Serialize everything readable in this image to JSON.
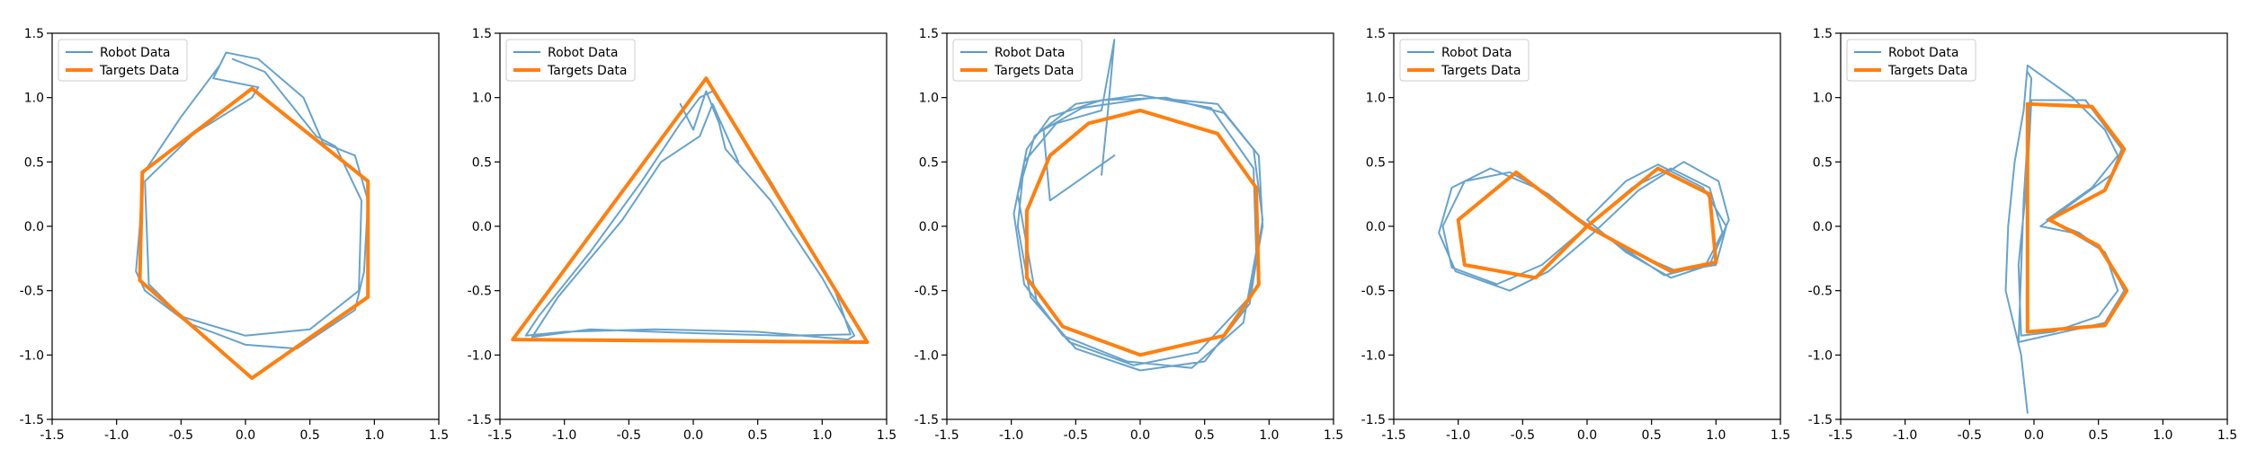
{
  "colors": {
    "robot": "#5799c7",
    "target": "#ff7f0e",
    "axes": "#000000",
    "legend_border": "#cccccc"
  },
  "chart_data": [
    {
      "type": "line",
      "title": "",
      "xlabel": "",
      "ylabel": "",
      "xlim": [
        -1.5,
        1.5
      ],
      "ylim": [
        -1.5,
        1.5
      ],
      "xticks": [
        "-1.5",
        "-1.0",
        "-0.5",
        "0.0",
        "0.5",
        "1.0",
        "1.5"
      ],
      "yticks": [
        "-1.5",
        "-1.0",
        "-0.5",
        "0.0",
        "0.5",
        "1.0",
        "1.5"
      ],
      "grid": false,
      "legend": "upper-left",
      "shape": "hexagon",
      "series": [
        {
          "name": "Robot Data",
          "color": "#5799c7",
          "x": [
            -0.25,
            -0.2,
            -0.5,
            -0.8,
            -0.82,
            -0.85,
            -0.78,
            -0.45,
            0.0,
            0.4,
            0.85,
            0.92,
            0.95,
            0.85,
            0.6,
            0.45,
            0.1,
            -0.15,
            -0.25,
            0.1,
            0.05,
            -0.4,
            -0.78,
            -0.75,
            -0.5,
            0.0,
            0.5,
            0.88,
            0.9,
            0.7,
            0.55,
            0.15,
            -0.1
          ],
          "y": [
            1.15,
            1.25,
            0.85,
            0.4,
            0.0,
            -0.35,
            -0.5,
            -0.75,
            -0.92,
            -0.95,
            -0.65,
            -0.35,
            0.2,
            0.55,
            0.65,
            1.0,
            1.3,
            1.35,
            1.15,
            1.08,
            1.0,
            0.72,
            0.35,
            -0.45,
            -0.7,
            -0.85,
            -0.8,
            -0.5,
            0.2,
            0.62,
            0.7,
            1.2,
            1.3
          ]
        },
        {
          "name": "Targets Data",
          "color": "#ff7f0e",
          "x": [
            0.05,
            0.95,
            0.95,
            0.05,
            -0.82,
            -0.8,
            0.05
          ],
          "y": [
            1.07,
            0.35,
            -0.55,
            -1.18,
            -0.42,
            0.42,
            1.07
          ]
        }
      ]
    },
    {
      "type": "line",
      "title": "",
      "xlabel": "",
      "ylabel": "",
      "xlim": [
        -1.5,
        1.5
      ],
      "ylim": [
        -1.5,
        1.5
      ],
      "xticks": [
        "-1.5",
        "-1.0",
        "-0.5",
        "0.0",
        "0.5",
        "1.0",
        "1.5"
      ],
      "yticks": [
        "-1.5",
        "-1.0",
        "-0.5",
        "0.0",
        "0.5",
        "1.0",
        "1.5"
      ],
      "grid": false,
      "legend": "upper-left",
      "shape": "triangle",
      "series": [
        {
          "name": "Robot Data",
          "color": "#5799c7",
          "x": [
            -0.1,
            0.0,
            0.1,
            0.2,
            0.25,
            0.6,
            1.0,
            1.25,
            1.2,
            0.5,
            -0.3,
            -1.0,
            -1.3,
            -1.2,
            -0.8,
            -0.4,
            -0.1,
            0.05,
            0.15,
            0.6,
            1.1,
            1.22,
            0.7,
            0.0,
            -0.8,
            -1.25,
            -1.05,
            -0.55,
            -0.25,
            0.05,
            0.15,
            0.35
          ],
          "y": [
            0.95,
            0.75,
            1.05,
            0.8,
            0.6,
            0.2,
            -0.4,
            -0.85,
            -0.88,
            -0.82,
            -0.8,
            -0.82,
            -0.85,
            -0.7,
            -0.2,
            0.35,
            0.8,
            1.0,
            1.05,
            0.35,
            -0.5,
            -0.84,
            -0.85,
            -0.83,
            -0.8,
            -0.86,
            -0.55,
            0.05,
            0.5,
            0.7,
            0.95,
            0.5
          ]
        },
        {
          "name": "Targets Data",
          "color": "#ff7f0e",
          "x": [
            0.1,
            1.35,
            -1.4,
            0.1
          ],
          "y": [
            1.15,
            -0.9,
            -0.88,
            1.15
          ]
        }
      ]
    },
    {
      "type": "line",
      "title": "",
      "xlabel": "",
      "ylabel": "",
      "xlim": [
        -1.5,
        1.5
      ],
      "ylim": [
        -1.5,
        1.5
      ],
      "xticks": [
        "-1.5",
        "-1.0",
        "-0.5",
        "0.0",
        "0.5",
        "1.0",
        "1.5"
      ],
      "yticks": [
        "-1.5",
        "-1.0",
        "-0.5",
        "0.0",
        "0.5",
        "1.0",
        "1.5"
      ],
      "grid": false,
      "legend": "upper-left",
      "shape": "circle",
      "series": [
        {
          "name": "Robot Data",
          "color": "#5799c7",
          "x": [
            -0.3,
            -0.25,
            -0.2,
            -0.3,
            -0.65,
            -0.9,
            -0.95,
            -0.85,
            -0.55,
            -0.05,
            0.45,
            0.85,
            0.95,
            0.92,
            0.65,
            0.2,
            -0.3,
            -0.7,
            -0.88,
            -0.98,
            -0.9,
            -0.6,
            -0.1,
            0.4,
            0.8,
            0.9,
            0.88,
            0.55,
            0.0,
            -0.5,
            -0.82,
            -0.95,
            -0.8,
            -0.5,
            0.0,
            0.5,
            0.85,
            0.95,
            0.88,
            0.6,
            0.1,
            -0.45,
            -0.75,
            -0.7,
            -0.2
          ],
          "y": [
            0.4,
            0.9,
            1.45,
            0.9,
            0.8,
            0.5,
            0.0,
            -0.55,
            -0.9,
            -1.08,
            -0.98,
            -0.55,
            0.0,
            0.55,
            0.88,
            1.0,
            0.98,
            0.85,
            0.6,
            0.1,
            -0.45,
            -0.85,
            -1.05,
            -1.1,
            -0.75,
            -0.2,
            0.45,
            0.92,
            1.02,
            0.95,
            0.7,
            0.25,
            -0.6,
            -0.95,
            -1.12,
            -1.05,
            -0.6,
            0.05,
            0.6,
            0.95,
            1.0,
            0.92,
            0.75,
            0.2,
            0.55
          ]
        },
        {
          "name": "Targets Data",
          "color": "#ff7f0e",
          "x": [
            0.0,
            0.6,
            0.9,
            0.92,
            0.65,
            0.0,
            -0.6,
            -0.88,
            -0.88,
            -0.7,
            -0.4,
            0.0
          ],
          "y": [
            0.9,
            0.72,
            0.3,
            -0.45,
            -0.85,
            -1.0,
            -0.78,
            -0.4,
            0.12,
            0.55,
            0.8,
            0.9
          ]
        }
      ]
    },
    {
      "type": "line",
      "title": "",
      "xlabel": "",
      "ylabel": "",
      "xlim": [
        -1.5,
        1.5
      ],
      "ylim": [
        -1.5,
        1.5
      ],
      "xticks": [
        "-1.5",
        "-1.0",
        "-0.5",
        "0.0",
        "0.5",
        "1.0",
        "1.5"
      ],
      "yticks": [
        "-1.5",
        "-1.0",
        "-0.5",
        "0.0",
        "0.5",
        "1.0",
        "1.5"
      ],
      "grid": false,
      "legend": "upper-left",
      "shape": "infinity",
      "series": [
        {
          "name": "Robot Data",
          "color": "#5799c7",
          "x": [
            0.0,
            0.3,
            0.55,
            0.9,
            1.08,
            1.0,
            0.7,
            0.35,
            0.0,
            -0.3,
            -0.6,
            -0.95,
            -1.12,
            -1.05,
            -0.7,
            -0.35,
            0.0,
            0.35,
            0.65,
            0.95,
            1.05,
            0.92,
            0.6,
            0.25,
            -0.05,
            -0.4,
            -0.75,
            -1.05,
            -1.15,
            -1.02,
            -0.6,
            -0.3,
            0.05,
            0.4,
            0.75,
            1.02,
            1.1,
            0.95,
            0.65,
            0.3,
            0.0
          ],
          "y": [
            0.05,
            0.35,
            0.48,
            0.3,
            0.0,
            -0.3,
            -0.35,
            -0.2,
            0.0,
            0.25,
            0.42,
            0.35,
            0.0,
            -0.32,
            -0.45,
            -0.3,
            0.0,
            0.3,
            0.45,
            0.3,
            -0.05,
            -0.3,
            -0.38,
            -0.15,
            0.05,
            0.3,
            0.45,
            0.3,
            -0.05,
            -0.35,
            -0.5,
            -0.35,
            -0.05,
            0.28,
            0.5,
            0.35,
            0.05,
            -0.3,
            -0.4,
            -0.2,
            0.05
          ]
        },
        {
          "name": "Targets Data",
          "color": "#ff7f0e",
          "x": [
            0.0,
            0.55,
            0.95,
            1.0,
            0.65,
            0.0,
            -0.55,
            -1.0,
            -0.95,
            -0.4,
            0.0
          ],
          "y": [
            0.0,
            0.45,
            0.25,
            -0.28,
            -0.35,
            0.0,
            0.42,
            0.05,
            -0.3,
            -0.4,
            0.0
          ]
        }
      ]
    },
    {
      "type": "line",
      "title": "",
      "xlabel": "",
      "ylabel": "",
      "xlim": [
        -1.5,
        1.5
      ],
      "ylim": [
        -1.5,
        1.5
      ],
      "xticks": [
        "-1.5",
        "-1.0",
        "-0.5",
        "0.0",
        "0.5",
        "1.0",
        "1.5"
      ],
      "yticks": [
        "-1.5",
        "-1.0",
        "-0.5",
        "0.0",
        "0.5",
        "1.0",
        "1.5"
      ],
      "grid": false,
      "legend": "upper-left",
      "shape": "letter-B",
      "series": [
        {
          "name": "Robot Data",
          "color": "#5799c7",
          "x": [
            -0.05,
            -0.1,
            -0.22,
            -0.2,
            -0.15,
            -0.08,
            -0.05,
            0.3,
            0.55,
            0.65,
            0.45,
            0.1,
            0.35,
            0.55,
            0.65,
            0.5,
            0.15,
            -0.1,
            -0.12,
            -0.05,
            -0.02,
            0.4,
            0.68,
            0.6,
            0.05,
            0.3,
            0.55,
            0.7,
            0.55,
            0.1,
            -0.12,
            -0.08,
            -0.02,
            -0.05
          ],
          "y": [
            -1.45,
            -1.0,
            -0.5,
            0.0,
            0.5,
            0.9,
            1.25,
            1.0,
            0.75,
            0.55,
            0.3,
            0.05,
            -0.05,
            -0.2,
            -0.5,
            -0.7,
            -0.82,
            -0.85,
            -0.3,
            0.4,
            0.98,
            0.98,
            0.6,
            0.4,
            0.0,
            -0.05,
            -0.2,
            -0.5,
            -0.75,
            -0.85,
            -0.9,
            0.2,
            1.15,
            1.2
          ]
        },
        {
          "name": "Targets Data",
          "color": "#ff7f0e",
          "x": [
            -0.05,
            0.45,
            0.7,
            0.55,
            0.12,
            0.5,
            0.72,
            0.55,
            -0.05,
            -0.05
          ],
          "y": [
            0.95,
            0.93,
            0.6,
            0.28,
            0.05,
            -0.15,
            -0.5,
            -0.77,
            -0.82,
            0.95
          ]
        }
      ]
    }
  ]
}
